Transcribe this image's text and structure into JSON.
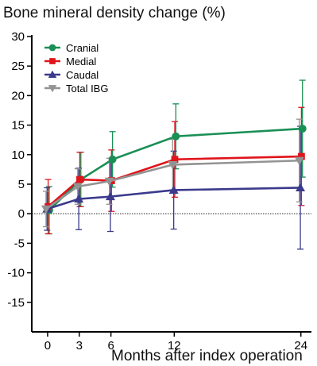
{
  "chart_data": {
    "type": "line",
    "title": "Bone mineral density change (%)",
    "xlabel": "Months after index operation",
    "ylabel": "",
    "x": [
      0,
      3,
      6,
      12,
      24
    ],
    "xticks": [
      0,
      3,
      6,
      12,
      24
    ],
    "yticks": [
      30,
      25,
      20,
      15,
      10,
      5,
      0,
      -5,
      -10,
      -15
    ],
    "xlim": [
      -1.5,
      25
    ],
    "ylim": [
      -20,
      30
    ],
    "reference_line": 0,
    "legend_position": "top-left",
    "grid": false,
    "series": [
      {
        "name": "Cranial",
        "color": "#1a8f55",
        "marker": "circle",
        "values": [
          0.6,
          5.8,
          9.2,
          13.1,
          14.4
        ],
        "err_upper": [
          4.6,
          10.4,
          13.9,
          18.6,
          22.6
        ],
        "err_lower": [
          -3.4,
          1.2,
          4.5,
          7.6,
          6.2
        ]
      },
      {
        "name": "Medial",
        "color": "#e0141b",
        "marker": "square",
        "values": [
          1.2,
          5.8,
          5.6,
          9.2,
          9.7
        ],
        "err_upper": [
          5.8,
          10.4,
          10.8,
          15.6,
          18.0
        ],
        "err_lower": [
          -3.4,
          1.2,
          0.4,
          2.8,
          1.4
        ]
      },
      {
        "name": "Caudal",
        "color": "#3b3a8c",
        "marker": "triangle-up",
        "values": [
          0.8,
          2.5,
          2.9,
          4.0,
          4.4
        ],
        "err_upper": [
          4.4,
          7.7,
          8.8,
          10.6,
          14.8
        ],
        "err_lower": [
          -2.8,
          -2.7,
          -3.0,
          -2.6,
          -6.0
        ]
      },
      {
        "name": "Total IBG",
        "color": "#939393",
        "marker": "triangle-down",
        "values": [
          0.8,
          4.6,
          5.5,
          8.3,
          9.0
        ],
        "err_upper": [
          3.8,
          7.6,
          9.4,
          12.6,
          16.0
        ],
        "err_lower": [
          -2.2,
          1.6,
          1.6,
          4.0,
          2.0
        ]
      }
    ]
  }
}
